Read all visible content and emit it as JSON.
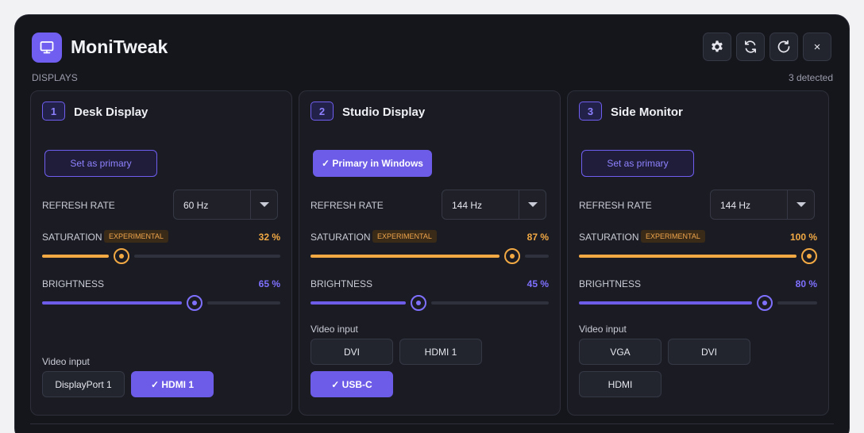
{
  "app": {
    "title": "MoniTweak"
  },
  "toolbar": {
    "close_label": "×"
  },
  "section": {
    "label": "DISPLAYS",
    "count": "3 detected"
  },
  "labels": {
    "refresh_rate": "REFRESH RATE",
    "saturation": "SATURATION",
    "brightness": "BRIGHTNESS",
    "experimental": "EXPERIMENTAL",
    "video_input": "Video input"
  },
  "colors": {
    "accent": "#6c5ce7",
    "warning": "#f2a944",
    "background": "#15161c",
    "card": "#1b1c23"
  },
  "displays": [
    {
      "number": "1",
      "name": "Desk Display",
      "primary_label": "Set as primary",
      "is_primary": false,
      "refresh_rate": "60 Hz",
      "saturation_label": "32 %",
      "saturation": 32,
      "brightness_label": "65 %",
      "brightness": 65,
      "inputs": [
        {
          "label": "DisplayPort 1",
          "selected": false
        },
        {
          "label": "✓ HDMI 1",
          "selected": true
        }
      ]
    },
    {
      "number": "2",
      "name": "Studio Display",
      "primary_label": "✓ Primary in Windows",
      "is_primary": true,
      "refresh_rate": "144 Hz",
      "saturation_label": "87 %",
      "saturation": 87,
      "brightness_label": "45 %",
      "brightness": 45,
      "inputs": [
        {
          "label": "DVI",
          "selected": false
        },
        {
          "label": "HDMI 1",
          "selected": false
        },
        {
          "label": "✓ USB-C",
          "selected": true
        }
      ]
    },
    {
      "number": "3",
      "name": "Side Monitor",
      "primary_label": "Set as primary",
      "is_primary": false,
      "refresh_rate": "144 Hz",
      "saturation_label": "100 %",
      "saturation": 100,
      "brightness_label": "80 %",
      "brightness": 80,
      "inputs": [
        {
          "label": "VGA",
          "selected": false
        },
        {
          "label": "DVI",
          "selected": false
        },
        {
          "label": "HDMI",
          "selected": false
        }
      ]
    }
  ]
}
